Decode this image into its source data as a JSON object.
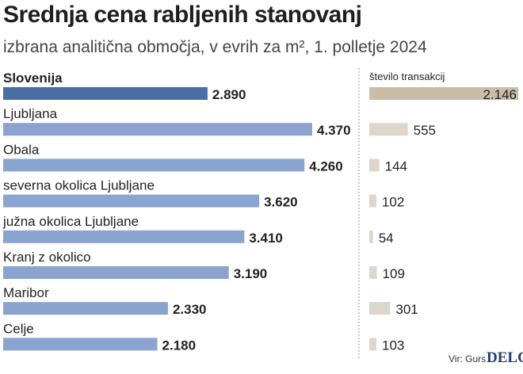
{
  "title": "Srednja cena rabljenih stanovanj",
  "subtitle": "izbrana analitična območja, v evrih za m², 1. polletje 2024",
  "source": "Vir: Gurs",
  "brand": "DELO",
  "colors": {
    "price_bar_highlight": "#4a6fa5",
    "price_bar": "#8ba3cf",
    "count_bar_highlight": "#c9bda8",
    "count_bar": "#ddd6ca",
    "divider": "#999999"
  },
  "chart_data": [
    {
      "type": "bar",
      "orientation": "horizontal",
      "title": "",
      "categories": [
        "Slovenija",
        "Ljubljana",
        "Obala",
        "severna okolica Ljubljane",
        "južna okolica Ljubljane",
        "Kranj z okolico",
        "Maribor",
        "Celje"
      ],
      "values": [
        2890,
        4370,
        4260,
        3620,
        3410,
        3190,
        2330,
        2180
      ],
      "labels": [
        "2.890",
        "4.370",
        "4.260",
        "3.620",
        "3.410",
        "3.190",
        "2.330",
        "2.180"
      ],
      "highlight_index": 0,
      "xlim": [
        0,
        4370
      ]
    },
    {
      "type": "bar",
      "orientation": "horizontal",
      "title": "število transakcij",
      "categories": [
        "Slovenija",
        "Ljubljana",
        "Obala",
        "severna okolica Ljubljane",
        "južna okolica Ljubljane",
        "Kranj z okolico",
        "Maribor",
        "Celje"
      ],
      "values": [
        2146,
        555,
        144,
        102,
        54,
        109,
        301,
        103
      ],
      "labels": [
        "2.146",
        "555",
        "144",
        "102",
        "54",
        "109",
        "301",
        "103"
      ],
      "highlight_index": 0,
      "xlim": [
        0,
        2146
      ]
    }
  ]
}
